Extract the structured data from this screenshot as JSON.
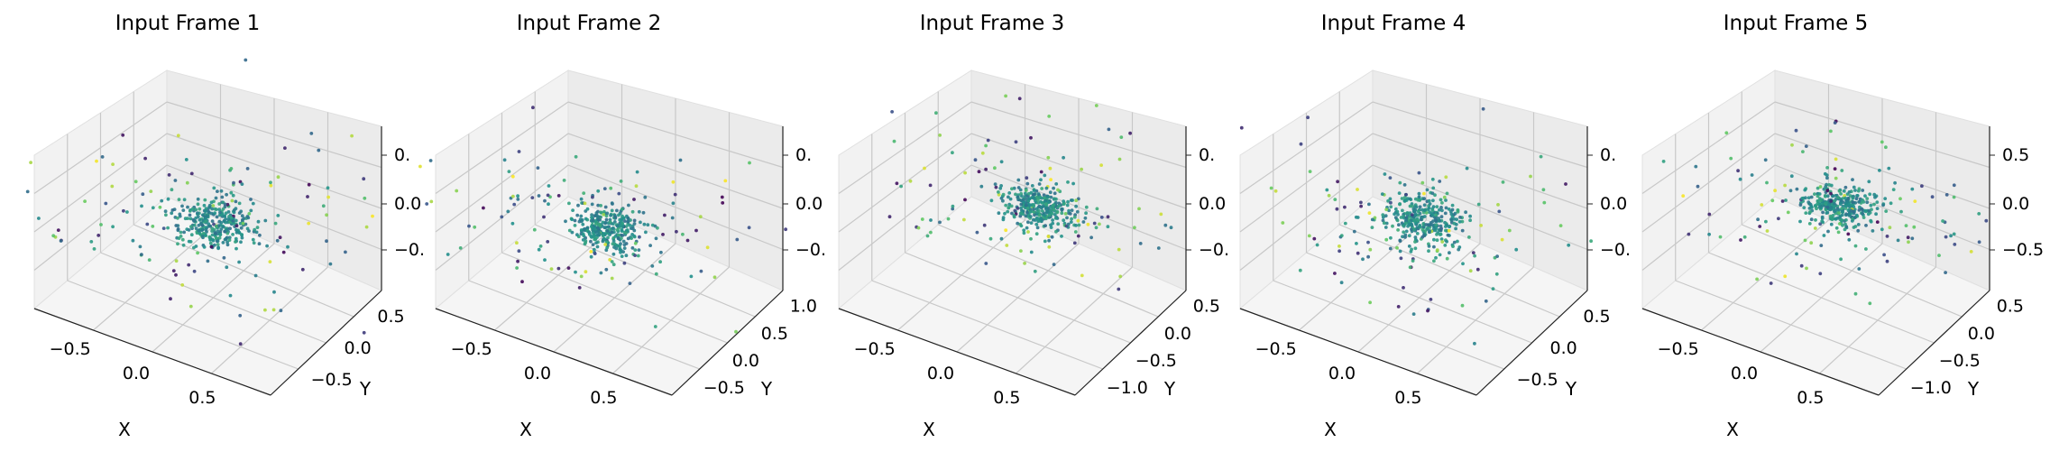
{
  "figure": {
    "panels": [
      {
        "title": "Input Frame 1",
        "x_ticks": [
          "−0.5",
          "0.0",
          "0.5"
        ],
        "y_ticks": [
          "−0.5",
          "0.0",
          "0.5"
        ],
        "z_ticks": [
          "0.",
          "0.0",
          "−0."
        ],
        "xlabel": "X",
        "ylabel": "Y"
      },
      {
        "title": "Input Frame 2",
        "x_ticks": [
          "−0.5",
          "0.0",
          "0.5"
        ],
        "y_ticks": [
          "−0.5",
          "0.0",
          "0.5",
          "1.0"
        ],
        "z_ticks": [
          "0.",
          "0.0",
          "−0."
        ],
        "xlabel": "X",
        "ylabel": "Y"
      },
      {
        "title": "Input Frame 3",
        "x_ticks": [
          "−0.5",
          "0.0",
          "0.5"
        ],
        "y_ticks": [
          "−1.0",
          "−0.5",
          "0.0",
          "0.5"
        ],
        "z_ticks": [
          "0.",
          "0.0",
          "−0."
        ],
        "xlabel": "X",
        "ylabel": "Y"
      },
      {
        "title": "Input Frame 4",
        "x_ticks": [
          "−0.5",
          "0.0",
          "0.5"
        ],
        "y_ticks": [
          "−0.5",
          "0.0",
          "0.5"
        ],
        "z_ticks": [
          "0.",
          "0.0",
          "−0."
        ],
        "xlabel": "X",
        "ylabel": "Y"
      },
      {
        "title": "Input Frame 5",
        "x_ticks": [
          "−0.5",
          "0.0",
          "0.5"
        ],
        "y_ticks": [
          "−1.0",
          "−0.5",
          "0.0",
          "0.5"
        ],
        "z_ticks": [
          "0.5",
          "0.0",
          "−0.5"
        ],
        "xlabel": "X",
        "ylabel": "Y"
      }
    ]
  },
  "chart_data": [
    {
      "type": "scatter",
      "title": "Input Frame 1",
      "xlabel": "X",
      "ylabel": "Y",
      "zlabel": "",
      "projection": "3d",
      "colormap": "viridis",
      "grid": true,
      "xlim": [
        -0.8,
        0.8
      ],
      "ylim": [
        -0.6,
        0.8
      ],
      "zlim": [
        -0.6,
        0.6
      ],
      "point_cloud": {
        "center": [
          0.0,
          0.05,
          0.0
        ],
        "core_spread": 0.12,
        "halo_spread": 0.45
      }
    },
    {
      "type": "scatter",
      "title": "Input Frame 2",
      "xlabel": "X",
      "ylabel": "Y",
      "zlabel": "",
      "projection": "3d",
      "colormap": "viridis",
      "grid": true,
      "xlim": [
        -0.8,
        0.8
      ],
      "ylim": [
        -0.6,
        1.1
      ],
      "zlim": [
        -0.6,
        0.6
      ],
      "point_cloud": {
        "center": [
          0.0,
          0.1,
          0.0
        ],
        "core_spread": 0.12,
        "halo_spread": 0.45
      }
    },
    {
      "type": "scatter",
      "title": "Input Frame 3",
      "xlabel": "X",
      "ylabel": "Y",
      "zlabel": "",
      "projection": "3d",
      "colormap": "viridis",
      "grid": true,
      "xlim": [
        -0.8,
        0.8
      ],
      "ylim": [
        -1.1,
        0.7
      ],
      "zlim": [
        -0.6,
        0.6
      ],
      "point_cloud": {
        "center": [
          0.0,
          0.0,
          0.0
        ],
        "core_spread": 0.12,
        "halo_spread": 0.45
      }
    },
    {
      "type": "scatter",
      "title": "Input Frame 4",
      "xlabel": "X",
      "ylabel": "Y",
      "zlabel": "",
      "projection": "3d",
      "colormap": "viridis",
      "grid": true,
      "xlim": [
        -0.8,
        0.8
      ],
      "ylim": [
        -0.7,
        0.7
      ],
      "zlim": [
        -0.6,
        0.6
      ],
      "point_cloud": {
        "center": [
          0.0,
          0.0,
          0.0
        ],
        "core_spread": 0.12,
        "halo_spread": 0.45
      }
    },
    {
      "type": "scatter",
      "title": "Input Frame 5",
      "xlabel": "X",
      "ylabel": "Y",
      "zlabel": "",
      "projection": "3d",
      "colormap": "viridis",
      "grid": true,
      "xlim": [
        -0.8,
        0.8
      ],
      "ylim": [
        -1.1,
        0.7
      ],
      "zlim": [
        -0.8,
        0.8
      ],
      "point_cloud": {
        "center": [
          0.0,
          0.0,
          0.0
        ],
        "core_spread": 0.12,
        "halo_spread": 0.45
      }
    }
  ]
}
